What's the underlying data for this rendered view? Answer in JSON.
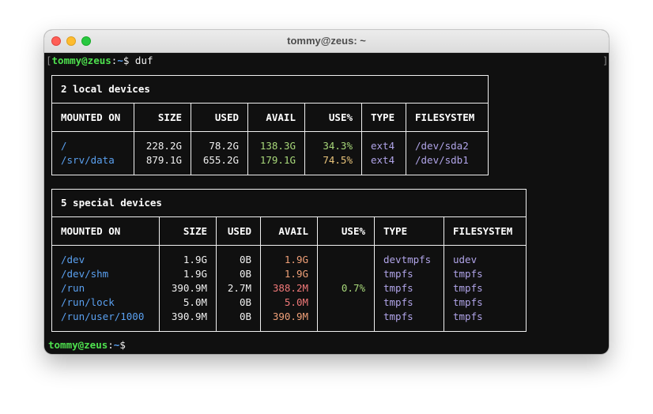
{
  "window": {
    "title": "tommy@zeus: ~"
  },
  "prompt": {
    "open_bracket": "[",
    "user_host": "tommy@zeus",
    "colon": ":",
    "path": "~",
    "dollar": "$",
    "command": " duf",
    "close_bracket": "]"
  },
  "local": {
    "title": "2 local devices",
    "headers": [
      "MOUNTED ON",
      "SIZE",
      "USED",
      "AVAIL",
      "USE%",
      "TYPE",
      "FILESYSTEM"
    ],
    "rows": [
      {
        "mount": "/",
        "size": "228.2G",
        "used": "78.2G",
        "avail": "138.3G",
        "use": "34.3%",
        "type": "ext4",
        "fs": "/dev/sda2"
      },
      {
        "mount": "/srv/data",
        "size": "879.1G",
        "used": "655.2G",
        "avail": "179.1G",
        "use": "74.5%",
        "type": "ext4",
        "fs": "/dev/sdb1"
      }
    ]
  },
  "special": {
    "title": "5 special devices",
    "headers": [
      "MOUNTED ON",
      "SIZE",
      "USED",
      "AVAIL",
      "USE%",
      "TYPE",
      "FILESYSTEM"
    ],
    "rows": [
      {
        "mount": "/dev",
        "size": "1.9G",
        "used": "0B",
        "avail": "1.9G",
        "use": "",
        "type": "devtmpfs",
        "fs": "udev"
      },
      {
        "mount": "/dev/shm",
        "size": "1.9G",
        "used": "0B",
        "avail": "1.9G",
        "use": "",
        "type": "tmpfs",
        "fs": "tmpfs"
      },
      {
        "mount": "/run",
        "size": "390.9M",
        "used": "2.7M",
        "avail": "388.2M",
        "use": "0.7%",
        "type": "tmpfs",
        "fs": "tmpfs"
      },
      {
        "mount": "/run/lock",
        "size": "5.0M",
        "used": "0B",
        "avail": "5.0M",
        "use": "",
        "type": "tmpfs",
        "fs": "tmpfs"
      },
      {
        "mount": "/run/user/1000",
        "size": "390.9M",
        "used": "0B",
        "avail": "390.9M",
        "use": "",
        "type": "tmpfs",
        "fs": "tmpfs"
      }
    ]
  },
  "colors": {
    "avail_good": "#a8d87a",
    "avail_warn": "#f0a078",
    "use_low": "#a8d87a",
    "use_mid": "#e8c37a",
    "mount": "#5aa0f0",
    "type": "#b0a4e8"
  }
}
